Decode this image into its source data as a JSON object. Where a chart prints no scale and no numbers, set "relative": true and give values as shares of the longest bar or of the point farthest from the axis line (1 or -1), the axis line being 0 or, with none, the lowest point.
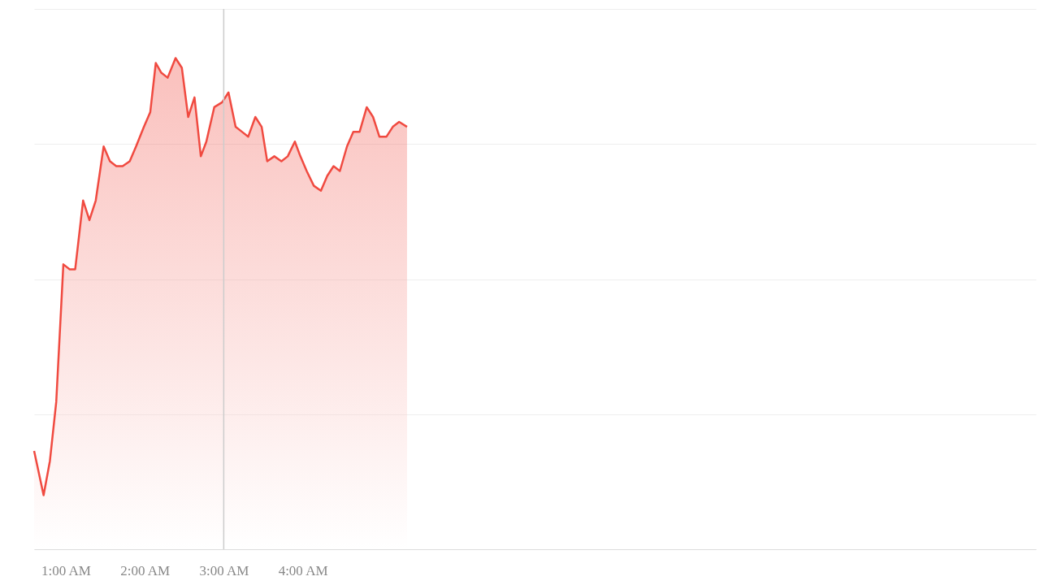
{
  "chart_data": {
    "type": "area",
    "relative": true,
    "grid": "y",
    "x": [
      0.6,
      0.72,
      0.8,
      0.88,
      0.97,
      1.05,
      1.12,
      1.22,
      1.3,
      1.38,
      1.48,
      1.56,
      1.64,
      1.72,
      1.81,
      1.89,
      1.99,
      2.07,
      2.14,
      2.21,
      2.29,
      2.39,
      2.47,
      2.55,
      2.63,
      2.71,
      2.78,
      2.88,
      2.98,
      3.06,
      3.15,
      3.23,
      3.31,
      3.4,
      3.48,
      3.55,
      3.64,
      3.73,
      3.81,
      3.9,
      3.97,
      4.05,
      4.14,
      4.23,
      4.31,
      4.39,
      4.47,
      4.56,
      4.64,
      4.72,
      4.81,
      4.89,
      4.97,
      5.06,
      5.14,
      5.22,
      5.32
    ],
    "series": [
      {
        "color": "#f04a40",
        "values": [
          0.2,
          0.11,
          0.18,
          0.3,
          0.58,
          0.57,
          0.57,
          0.71,
          0.67,
          0.71,
          0.82,
          0.79,
          0.78,
          0.78,
          0.79,
          0.82,
          0.86,
          0.89,
          0.99,
          0.97,
          0.96,
          1,
          0.98,
          0.88,
          0.92,
          0.8,
          0.83,
          0.9,
          0.91,
          0.93,
          0.86,
          0.85,
          0.84,
          0.88,
          0.86,
          0.79,
          0.8,
          0.79,
          0.8,
          0.83,
          0.8,
          0.77,
          0.74,
          0.73,
          0.76,
          0.78,
          0.77,
          0.82,
          0.85,
          0.85,
          0.9,
          0.88,
          0.84,
          0.84,
          0.86,
          0.87,
          0.86
        ]
      }
    ],
    "xlim": [
      0.6,
      13.28
    ],
    "xticks": [
      {
        "value": 1,
        "label": "1:00 AM"
      },
      {
        "value": 2,
        "label": "2:00 AM"
      },
      {
        "value": 3,
        "label": "3:00 AM"
      },
      {
        "value": 4,
        "label": "4:00 AM"
      }
    ],
    "ref_lines": [
      {
        "axis": "x",
        "value": 3,
        "color": "#cccccc"
      }
    ]
  }
}
